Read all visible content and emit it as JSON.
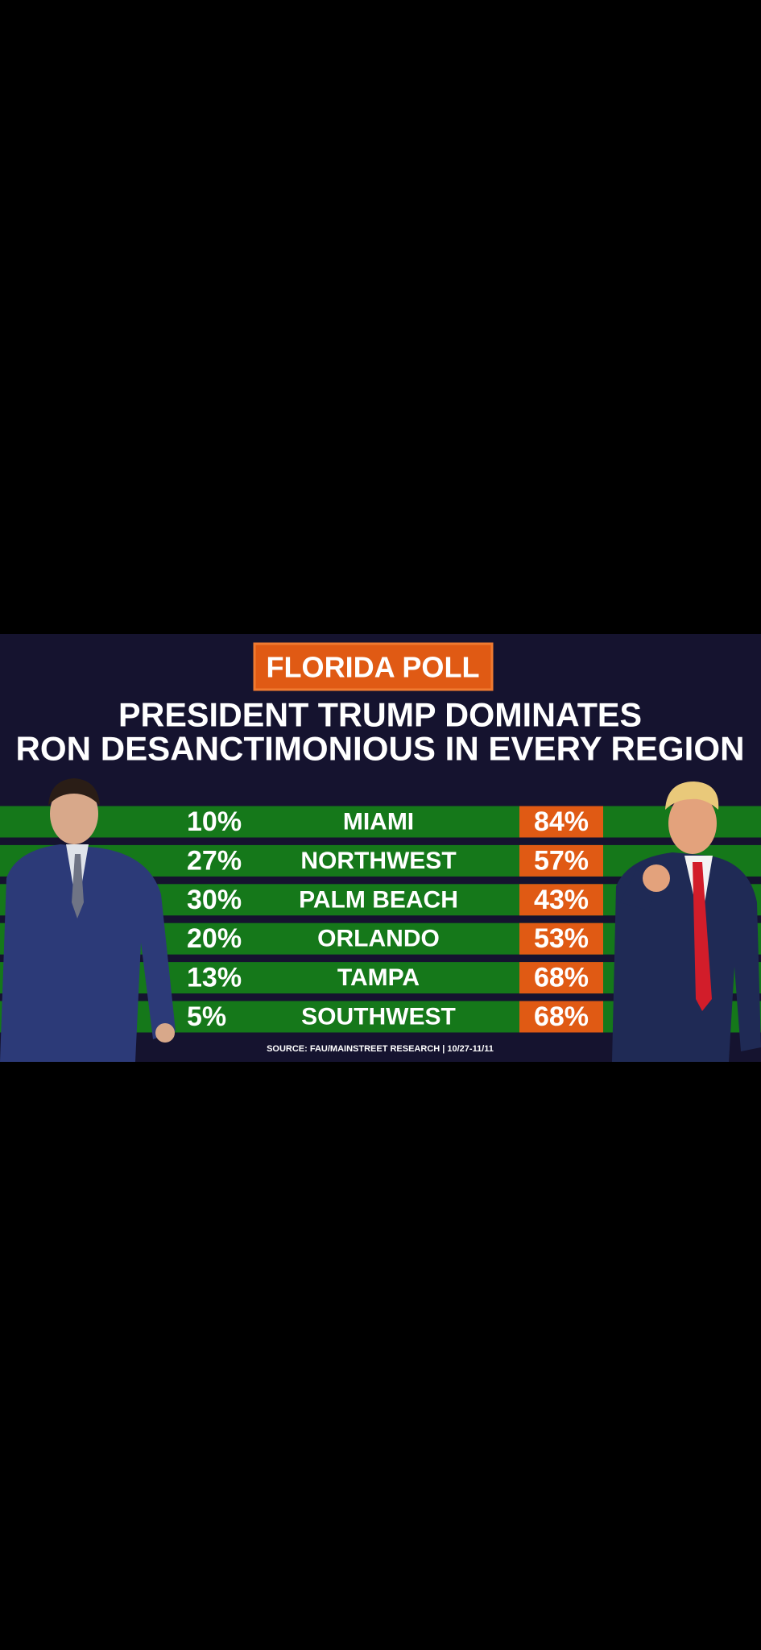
{
  "header": {
    "badge": "FLORIDA POLL",
    "title_lines": [
      "PRESIDENT TRUMP DOMINATES",
      "RON DESANCTIMONIOUS IN EVERY REGION"
    ]
  },
  "table": {
    "rows": [
      [
        "10%",
        "MIAMI",
        "84%"
      ],
      [
        "27%",
        "NORTHWEST",
        "57%"
      ],
      [
        "30%",
        "PALM BEACH",
        "43%"
      ],
      [
        "20%",
        "ORLANDO",
        "53%"
      ],
      [
        "13%",
        "TAMPA",
        "68%"
      ],
      [
        "5%",
        "SOUTHWEST",
        "68%"
      ]
    ]
  },
  "source": "SOURCE: FAU/MAINSTREET RESEARCH | 10/27-11/11"
}
